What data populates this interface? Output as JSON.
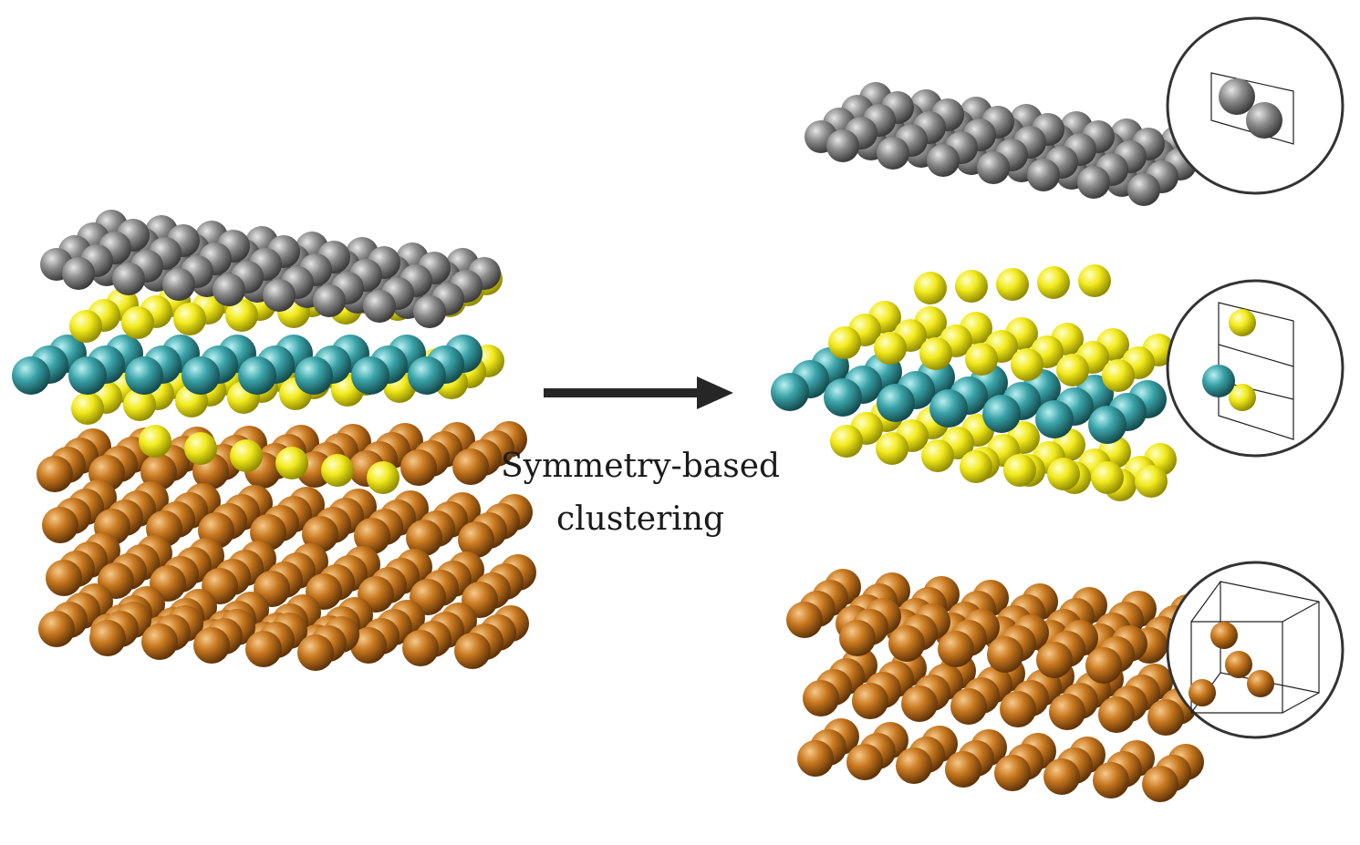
{
  "caption": {
    "line1": "Symmetry-based",
    "line2": "clustering"
  },
  "colors": {
    "gray_atom": "#8a8a8a",
    "yellow_atom": "#f2ea1c",
    "teal_atom": "#3aa3a8",
    "copper_atom": "#c8781f",
    "arrow": "#262626",
    "inset_border": "#333333"
  },
  "layers": [
    {
      "id": "gray-layer",
      "color": "gray_atom"
    },
    {
      "id": "sulfide-layer",
      "colors": [
        "yellow_atom",
        "teal_atom"
      ]
    },
    {
      "id": "copper-layer",
      "color": "copper_atom"
    }
  ],
  "insets": [
    {
      "id": "gray-unit-cell",
      "atoms": 2
    },
    {
      "id": "sulfide-unit-cell",
      "atoms": 3
    },
    {
      "id": "copper-unit-cell",
      "atoms": 4
    }
  ]
}
